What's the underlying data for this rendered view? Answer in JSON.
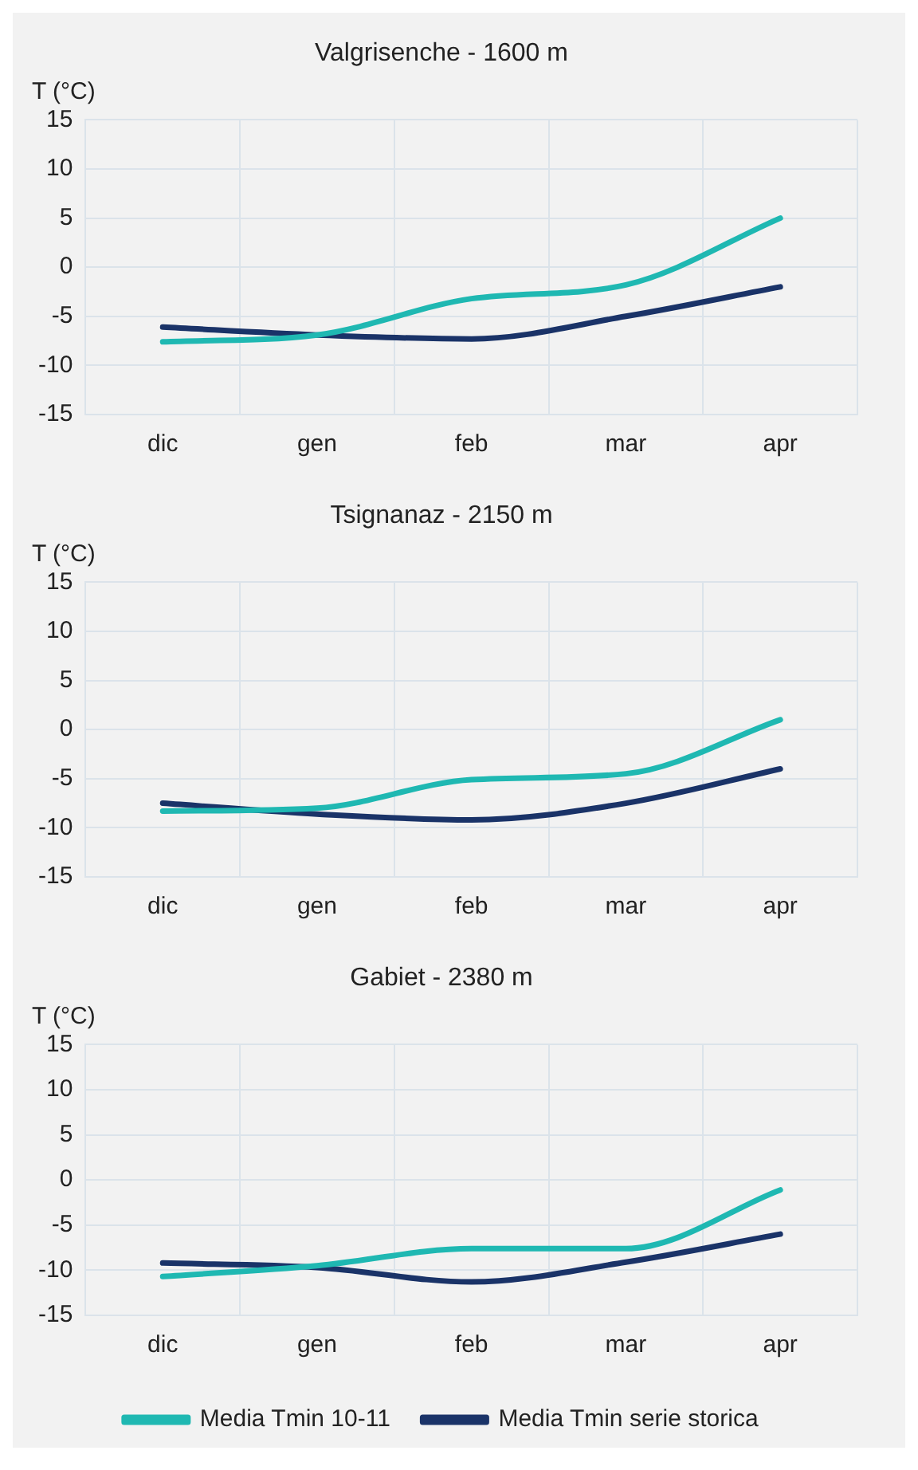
{
  "chart_data": [
    {
      "type": "line",
      "title": "Valgrisenche - 1600 m",
      "ylabel": "T (°C)",
      "categories": [
        "dic",
        "gen",
        "feb",
        "mar",
        "apr"
      ],
      "ylim": [
        -15,
        15
      ],
      "yticks": [
        -15,
        -10,
        -5,
        0,
        5,
        10,
        15
      ],
      "grid": true,
      "legend": false,
      "marker": "none",
      "line_style": "solid",
      "series": [
        {
          "color": "#1fb8b2",
          "values": [
            -7.6,
            -6.9,
            -3.2,
            -1.8,
            5
          ]
        },
        {
          "color": "#1a3368",
          "values": [
            -6.1,
            -6.9,
            -7.3,
            -5,
            -2
          ]
        }
      ]
    },
    {
      "type": "line",
      "title": "Tsignanaz - 2150 m",
      "ylabel": "T (°C)",
      "categories": [
        "dic",
        "gen",
        "feb",
        "mar",
        "apr"
      ],
      "ylim": [
        -15,
        15
      ],
      "yticks": [
        -15,
        -10,
        -5,
        0,
        5,
        10,
        15
      ],
      "grid": true,
      "legend": false,
      "marker": "none",
      "line_style": "solid",
      "series": [
        {
          "color": "#1fb8b2",
          "values": [
            -8.3,
            -8,
            -5.1,
            -4.5,
            1
          ]
        },
        {
          "color": "#1a3368",
          "values": [
            -7.5,
            -8.6,
            -9.2,
            -7.5,
            -4
          ]
        }
      ]
    },
    {
      "type": "line",
      "title": "Gabiet - 2380 m",
      "ylabel": "T (°C)",
      "categories": [
        "dic",
        "gen",
        "feb",
        "mar",
        "apr"
      ],
      "ylim": [
        -15,
        15
      ],
      "yticks": [
        -15,
        -10,
        -5,
        0,
        5,
        10,
        15
      ],
      "grid": true,
      "legend": "bottom",
      "marker": "none",
      "line_style": "solid",
      "series": [
        {
          "name": "Media Tmin 10-11",
          "color": "#1fb8b2",
          "values": [
            -10.7,
            -9.5,
            -7.6,
            -7.6,
            -1.1
          ]
        },
        {
          "name": "Media Tmin serie storica",
          "color": "#1a3368",
          "values": [
            -9.2,
            -9.7,
            -11.3,
            -9.1,
            -6
          ]
        }
      ]
    }
  ]
}
